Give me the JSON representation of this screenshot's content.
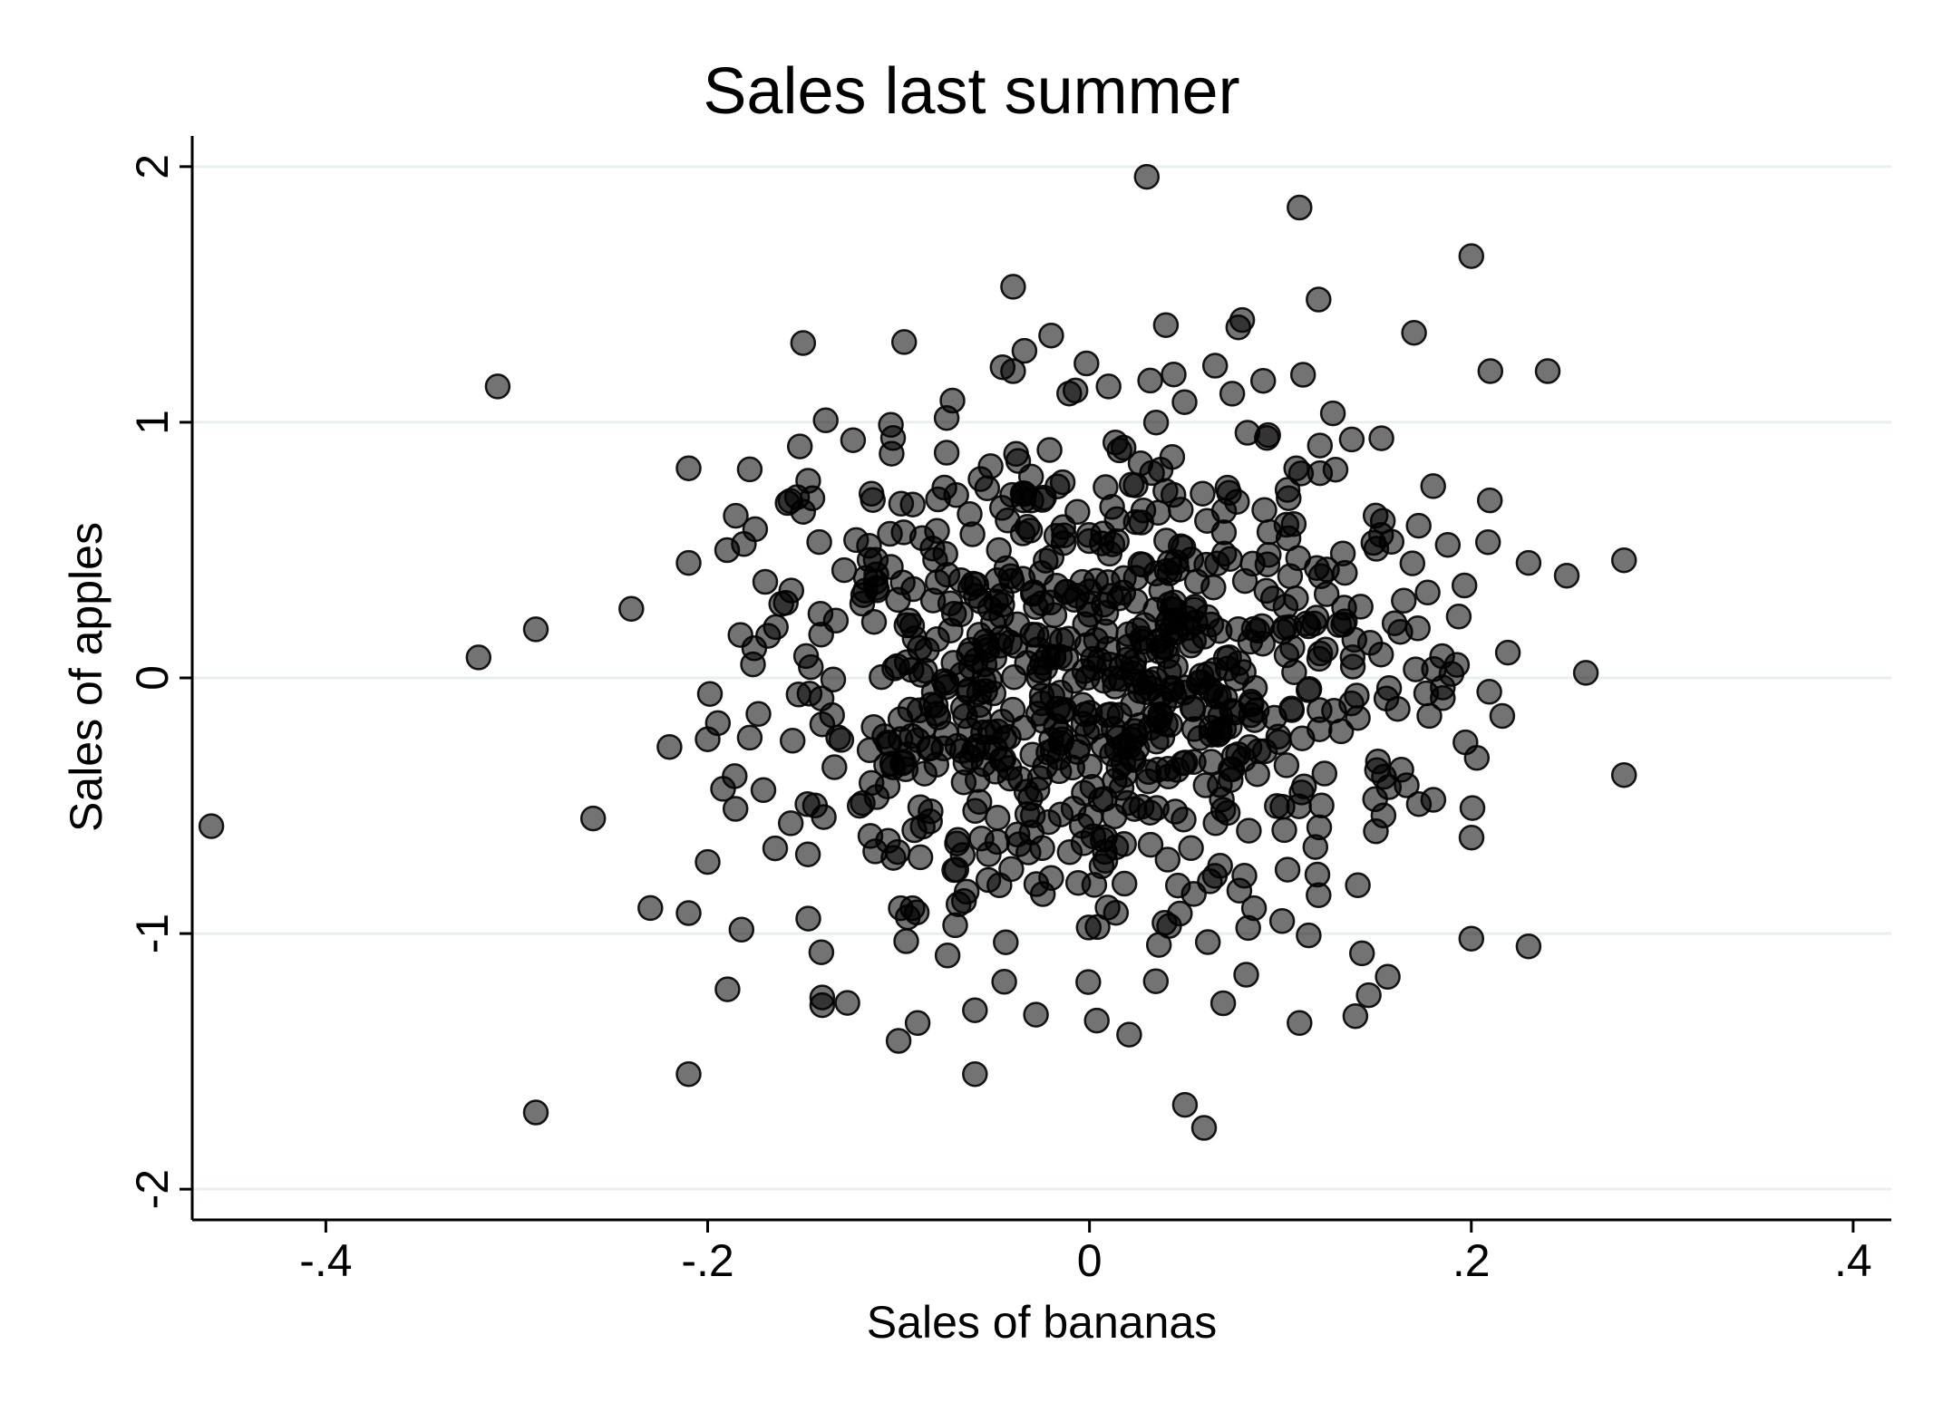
{
  "chart_data": {
    "type": "scatter",
    "title": "Sales last summer",
    "xlabel": "Sales of bananas",
    "ylabel": "Sales of apples",
    "xlim": [
      -0.47,
      0.42
    ],
    "ylim": [
      -2.12,
      2.12
    ],
    "x_ticks": [
      -0.4,
      -0.2,
      0,
      0.2,
      0.4
    ],
    "x_tick_labels": [
      "-.4",
      "-.2",
      "0",
      ".2",
      ".4"
    ],
    "y_ticks": [
      -2,
      -1,
      0,
      1,
      2
    ],
    "y_tick_labels": [
      "-2",
      "-1",
      "0",
      "1",
      "2"
    ],
    "grid": "horizontal",
    "marker_color": "#000000",
    "marker_opacity": 0.55,
    "outliers": {
      "x": [
        -0.46,
        -0.32,
        -0.31,
        -0.29,
        -0.29,
        -0.26,
        -0.24,
        -0.23,
        -0.22,
        -0.21,
        -0.21,
        -0.21,
        -0.21,
        -0.2,
        -0.2,
        -0.15,
        -0.15,
        -0.14,
        -0.14,
        -0.1,
        -0.09,
        -0.06,
        -0.06,
        -0.04,
        -0.04,
        0.01,
        0.03,
        0.04,
        0.05,
        0.06,
        0.08,
        0.11,
        0.11,
        0.12,
        0.17,
        0.18,
        0.2,
        0.2,
        0.21,
        0.23,
        0.23,
        0.24,
        0.25,
        0.26,
        0.28,
        0.28,
        0.12,
        0.15
      ],
      "y": [
        -0.58,
        0.08,
        1.14,
        0.19,
        -1.7,
        -0.55,
        0.27,
        -0.9,
        -0.27,
        0.82,
        0.45,
        -1.55,
        -0.92,
        -0.24,
        -0.72,
        1.31,
        0.65,
        -1.25,
        -1.28,
        -1.42,
        -1.35,
        -1.3,
        -1.55,
        1.53,
        1.2,
        1.14,
        1.96,
        1.38,
        -1.67,
        -1.76,
        1.4,
        1.84,
        -1.35,
        1.48,
        1.35,
        0.75,
        1.65,
        -1.02,
        1.2,
        0.45,
        -1.05,
        1.2,
        0.4,
        0.02,
        -0.38,
        0.46,
        -0.85,
        -0.6
      ]
    },
    "cluster": {
      "n": 820,
      "x_mean": 0.0,
      "x_sd": 0.095,
      "y_mean": 0.0,
      "y_sd": 0.55,
      "x_range": [
        -0.2,
        0.22
      ],
      "y_range": [
        -1.4,
        1.4
      ]
    }
  }
}
